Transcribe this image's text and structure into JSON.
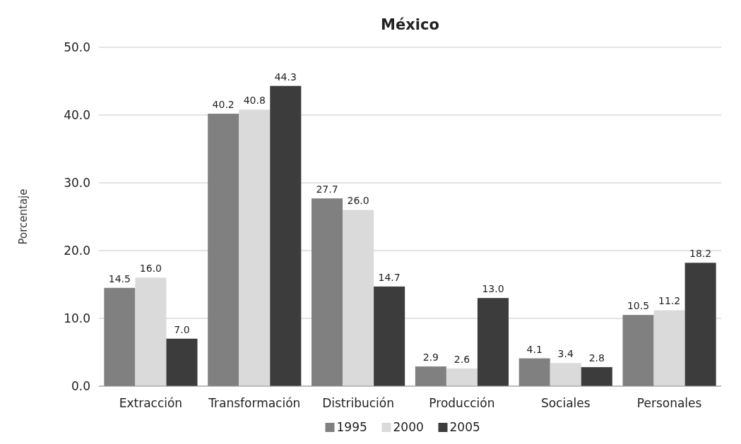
{
  "chart_data": {
    "type": "bar",
    "title": "México",
    "ylabel": "Porcentaje",
    "categories": [
      "Extracción",
      "Transformación",
      "Distribución",
      "Producción",
      "Sociales",
      "Personales"
    ],
    "series": [
      {
        "name": "1995",
        "color": "#808080",
        "values": [
          14.5,
          40.2,
          27.7,
          2.9,
          4.1,
          10.5
        ],
        "value_labels": [
          "14.5",
          "40.2",
          "27.7",
          "2.9",
          "4.1",
          "10.5"
        ]
      },
      {
        "name": "2000",
        "color": "#dadada",
        "values": [
          16,
          40.8,
          26,
          2.6,
          3.4,
          11.2
        ],
        "value_labels": [
          "16.0",
          "40.8",
          "26.0",
          "2.6",
          "3.4",
          "11.2"
        ]
      },
      {
        "name": "2005",
        "color": "#3c3c3c",
        "values": [
          7,
          44.3,
          14.7,
          13,
          2.8,
          18.2
        ],
        "value_labels": [
          "7.0",
          "44.3",
          "14.7",
          "13.0",
          "2.8",
          "18.2"
        ]
      }
    ],
    "ylim": [
      0,
      50
    ],
    "yticks": [
      {
        "value": 0,
        "label": "0.0"
      },
      {
        "value": 10,
        "label": "10.0"
      },
      {
        "value": 20,
        "label": "20.0"
      },
      {
        "value": 30,
        "label": "30.0"
      },
      {
        "value": 40,
        "label": "40.0"
      },
      {
        "value": 50,
        "label": "50.0"
      }
    ],
    "grid": "y",
    "legend": "bottom"
  }
}
